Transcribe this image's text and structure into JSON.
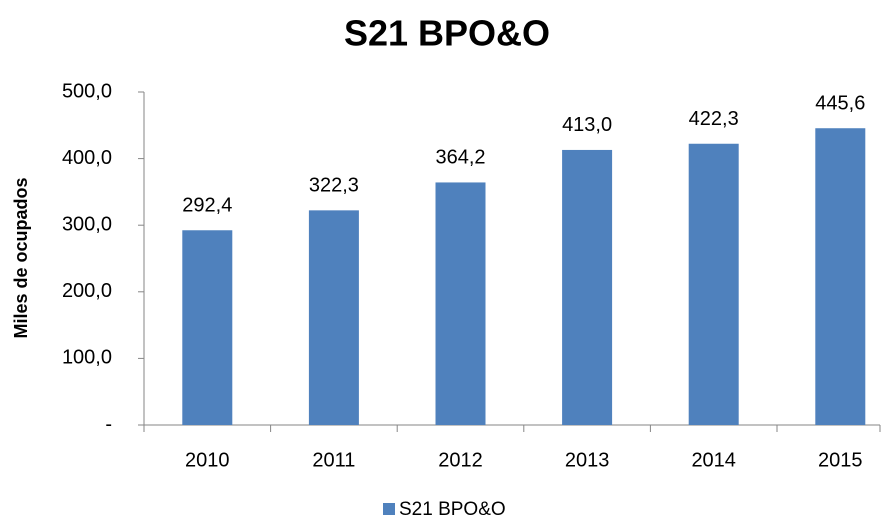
{
  "chart_data": {
    "type": "bar",
    "title": "S21 BPO&O",
    "y_label": "Miles de ocupados",
    "categories": [
      "2010",
      "2011",
      "2012",
      "2013",
      "2014",
      "2015"
    ],
    "series": [
      {
        "name": "S21 BPO&O",
        "color": "#4f81bd",
        "values": [
          292.4,
          322.3,
          364.2,
          413.0,
          422.3,
          445.6
        ],
        "value_labels": [
          "292,4",
          "322,3",
          "364,2",
          "413,0",
          "422,3",
          "445,6"
        ]
      }
    ],
    "ylim": [
      0,
      500
    ],
    "yticks": [
      {
        "value": 0,
        "label": "-"
      },
      {
        "value": 100,
        "label": "100,0"
      },
      {
        "value": 200,
        "label": "200,0"
      },
      {
        "value": 300,
        "label": "300,0"
      },
      {
        "value": 400,
        "label": "400,0"
      },
      {
        "value": 500,
        "label": "500,0"
      }
    ],
    "grid": false,
    "legend": "bottom"
  }
}
